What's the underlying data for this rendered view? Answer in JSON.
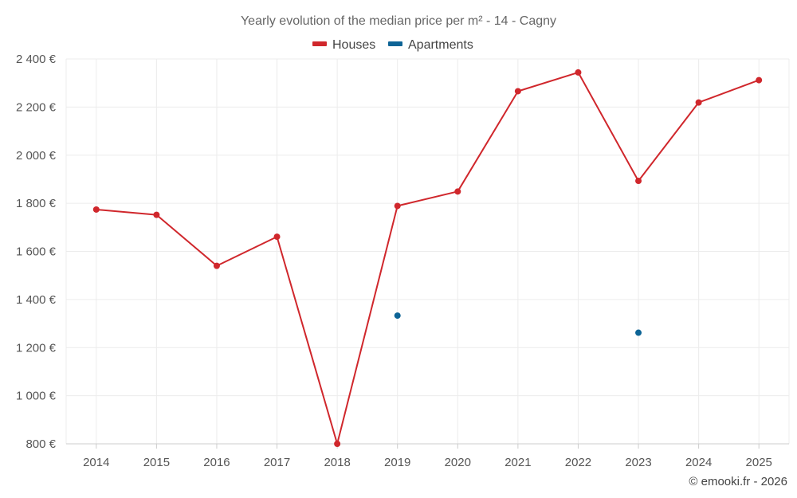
{
  "chart_data": {
    "type": "line",
    "title": "Yearly evolution of the median price per m² - 14 - Cagny",
    "categories": [
      "2014",
      "2015",
      "2016",
      "2017",
      "2018",
      "2019",
      "2020",
      "2021",
      "2022",
      "2023",
      "2024",
      "2025"
    ],
    "series": [
      {
        "name": "Houses",
        "color": "#d0272c",
        "values": [
          1774,
          1752,
          1540,
          1661,
          800,
          1789,
          1849,
          2266,
          2344,
          1893,
          2219,
          2312
        ]
      },
      {
        "name": "Apartments",
        "color": "#0d6496",
        "values": [
          null,
          null,
          null,
          null,
          null,
          1333,
          null,
          null,
          null,
          1262,
          null,
          null
        ]
      }
    ],
    "ylim": [
      800,
      2400
    ],
    "yticks": [
      800,
      1000,
      1200,
      1400,
      1600,
      1800,
      2000,
      2200,
      2400
    ],
    "ytick_labels": [
      "800 €",
      "1 000 €",
      "1 200 €",
      "1 400 €",
      "1 600 €",
      "1 800 €",
      "2 000 €",
      "2 200 €",
      "2 400 €"
    ],
    "xlabel": "",
    "ylabel": "",
    "grid": true,
    "legend_position": "top-center"
  },
  "credit": "© emooki.fr - 2026"
}
